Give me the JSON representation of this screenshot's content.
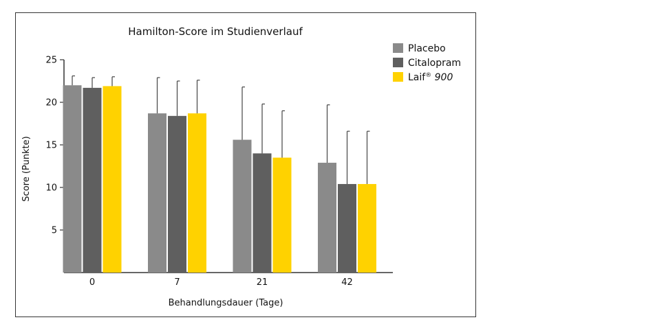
{
  "chart_data": {
    "type": "bar",
    "title": "Hamilton-Score im Studienverlauf",
    "xlabel": "Behandlungsdauer (Tage)",
    "ylabel": "Score (Punkte)",
    "categories": [
      "0",
      "7",
      "21",
      "42"
    ],
    "ylim": [
      0,
      25
    ],
    "yticks": [
      5,
      10,
      15,
      20,
      25
    ],
    "legend_position": "top-right",
    "grid": false,
    "series": [
      {
        "name": "Placebo",
        "color": "#8a8a8a",
        "values": [
          22.0,
          18.7,
          15.6,
          12.9
        ],
        "errors": [
          1.1,
          4.2,
          6.2,
          6.8
        ]
      },
      {
        "name": "Citalopram",
        "color": "#5f5f5f",
        "values": [
          21.7,
          18.4,
          14.0,
          10.4
        ],
        "errors": [
          1.2,
          4.1,
          5.8,
          6.2
        ]
      },
      {
        "name": "Laif",
        "name_suffix": "900",
        "color": "#ffd200",
        "values": [
          21.9,
          18.7,
          13.5,
          10.4
        ],
        "errors": [
          1.1,
          3.9,
          5.5,
          6.2
        ]
      }
    ]
  }
}
